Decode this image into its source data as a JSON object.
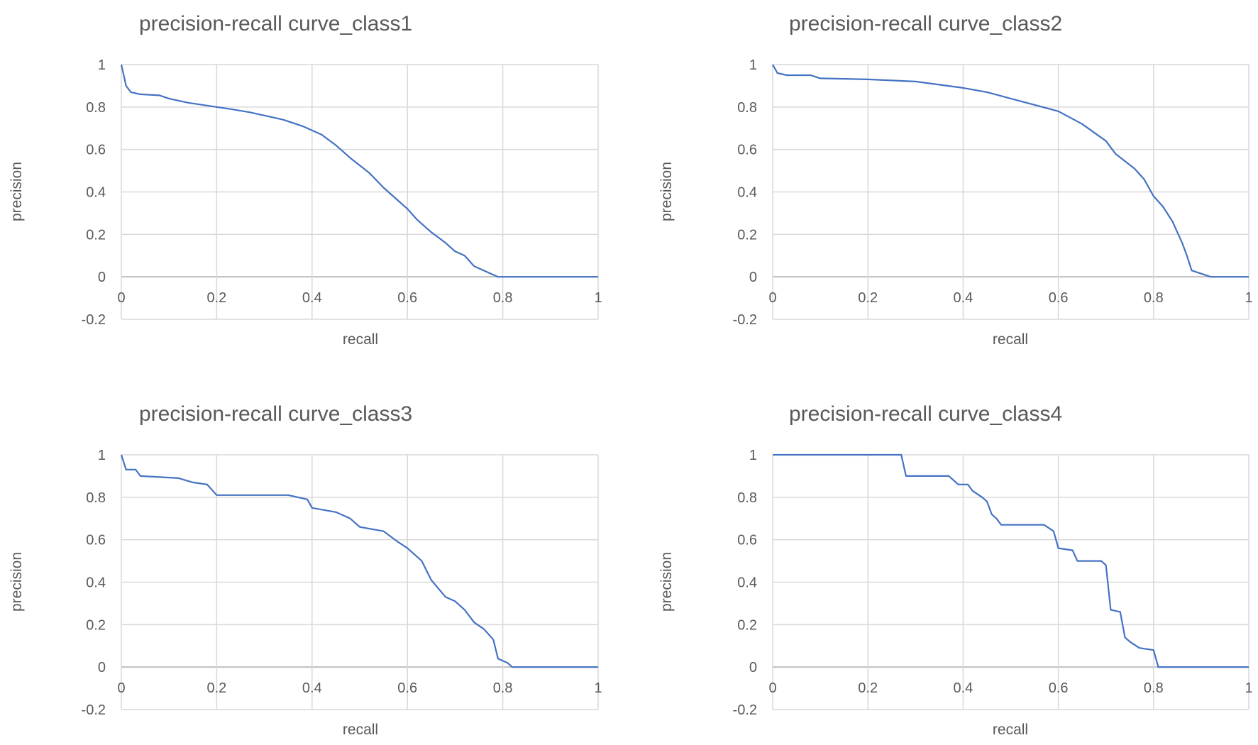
{
  "chart_data": [
    {
      "type": "line",
      "title": "precision-recall curve_class1",
      "xlabel": "recall",
      "ylabel": "precision",
      "xlim": [
        0,
        1
      ],
      "ylim": [
        -0.2,
        1
      ],
      "x_ticks": [
        "0",
        "0.2",
        "0.4",
        "0.6",
        "0.8",
        "1"
      ],
      "y_ticks": [
        "1",
        "0.8",
        "0.6",
        "0.4",
        "0.2",
        "0",
        "-0.2"
      ],
      "grid": true,
      "legend": "none",
      "series": [
        {
          "color": "#4472c4",
          "points": [
            [
              0,
              1
            ],
            [
              0.005,
              0.95
            ],
            [
              0.01,
              0.9
            ],
            [
              0.02,
              0.87
            ],
            [
              0.04,
              0.86
            ],
            [
              0.08,
              0.855
            ],
            [
              0.1,
              0.84
            ],
            [
              0.14,
              0.82
            ],
            [
              0.2,
              0.8
            ],
            [
              0.23,
              0.79
            ],
            [
              0.27,
              0.775
            ],
            [
              0.3,
              0.76
            ],
            [
              0.34,
              0.74
            ],
            [
              0.38,
              0.71
            ],
            [
              0.42,
              0.67
            ],
            [
              0.45,
              0.62
            ],
            [
              0.48,
              0.56
            ],
            [
              0.52,
              0.49
            ],
            [
              0.55,
              0.42
            ],
            [
              0.58,
              0.36
            ],
            [
              0.6,
              0.32
            ],
            [
              0.62,
              0.27
            ],
            [
              0.65,
              0.21
            ],
            [
              0.68,
              0.16
            ],
            [
              0.7,
              0.12
            ],
            [
              0.72,
              0.1
            ],
            [
              0.74,
              0.05
            ],
            [
              0.77,
              0.02
            ],
            [
              0.78,
              0.01
            ],
            [
              0.79,
              0
            ],
            [
              1,
              0
            ]
          ]
        }
      ]
    },
    {
      "type": "line",
      "title": "precision-recall curve_class2",
      "xlabel": "recall",
      "ylabel": "precision",
      "xlim": [
        0,
        1
      ],
      "ylim": [
        -0.2,
        1
      ],
      "x_ticks": [
        "0",
        "0.2",
        "0.4",
        "0.6",
        "0.8",
        "1"
      ],
      "y_ticks": [
        "1",
        "0.8",
        "0.6",
        "0.4",
        "0.2",
        "0",
        "-0.2"
      ],
      "grid": true,
      "legend": "none",
      "series": [
        {
          "color": "#4472c4",
          "points": [
            [
              0,
              1
            ],
            [
              0.01,
              0.96
            ],
            [
              0.03,
              0.95
            ],
            [
              0.08,
              0.95
            ],
            [
              0.1,
              0.935
            ],
            [
              0.2,
              0.93
            ],
            [
              0.3,
              0.92
            ],
            [
              0.4,
              0.89
            ],
            [
              0.45,
              0.87
            ],
            [
              0.5,
              0.84
            ],
            [
              0.55,
              0.81
            ],
            [
              0.6,
              0.78
            ],
            [
              0.65,
              0.72
            ],
            [
              0.7,
              0.64
            ],
            [
              0.72,
              0.58
            ],
            [
              0.76,
              0.51
            ],
            [
              0.78,
              0.46
            ],
            [
              0.8,
              0.38
            ],
            [
              0.82,
              0.33
            ],
            [
              0.84,
              0.26
            ],
            [
              0.86,
              0.16
            ],
            [
              0.87,
              0.1
            ],
            [
              0.88,
              0.03
            ],
            [
              0.9,
              0.015
            ],
            [
              0.92,
              0
            ],
            [
              1,
              0
            ]
          ]
        }
      ]
    },
    {
      "type": "line",
      "title": "precision-recall curve_class3",
      "xlabel": "recall",
      "ylabel": "precision",
      "xlim": [
        0,
        1
      ],
      "ylim": [
        -0.2,
        1
      ],
      "x_ticks": [
        "0",
        "0.2",
        "0.4",
        "0.6",
        "0.8",
        "1"
      ],
      "y_ticks": [
        "1",
        "0.8",
        "0.6",
        "0.4",
        "0.2",
        "0",
        "-0.2"
      ],
      "grid": true,
      "legend": "none",
      "series": [
        {
          "color": "#4472c4",
          "points": [
            [
              0,
              1
            ],
            [
              0.01,
              0.93
            ],
            [
              0.03,
              0.93
            ],
            [
              0.04,
              0.9
            ],
            [
              0.12,
              0.89
            ],
            [
              0.15,
              0.87
            ],
            [
              0.18,
              0.86
            ],
            [
              0.2,
              0.81
            ],
            [
              0.35,
              0.81
            ],
            [
              0.39,
              0.79
            ],
            [
              0.4,
              0.75
            ],
            [
              0.45,
              0.73
            ],
            [
              0.48,
              0.7
            ],
            [
              0.5,
              0.66
            ],
            [
              0.55,
              0.64
            ],
            [
              0.58,
              0.59
            ],
            [
              0.6,
              0.56
            ],
            [
              0.63,
              0.5
            ],
            [
              0.65,
              0.41
            ],
            [
              0.68,
              0.33
            ],
            [
              0.7,
              0.31
            ],
            [
              0.72,
              0.27
            ],
            [
              0.74,
              0.21
            ],
            [
              0.76,
              0.18
            ],
            [
              0.78,
              0.13
            ],
            [
              0.79,
              0.04
            ],
            [
              0.81,
              0.02
            ],
            [
              0.82,
              0
            ],
            [
              1,
              0
            ]
          ]
        }
      ]
    },
    {
      "type": "line",
      "title": "precision-recall curve_class4",
      "xlabel": "recall",
      "ylabel": "precision",
      "xlim": [
        0,
        1
      ],
      "ylim": [
        -0.2,
        1
      ],
      "x_ticks": [
        "0",
        "0.2",
        "0.4",
        "0.6",
        "0.8",
        "1"
      ],
      "y_ticks": [
        "1",
        "0.8",
        "0.6",
        "0.4",
        "0.2",
        "0",
        "-0.2"
      ],
      "grid": true,
      "legend": "none",
      "series": [
        {
          "color": "#4472c4",
          "points": [
            [
              0,
              1
            ],
            [
              0.27,
              1
            ],
            [
              0.28,
              0.9
            ],
            [
              0.37,
              0.9
            ],
            [
              0.39,
              0.86
            ],
            [
              0.41,
              0.86
            ],
            [
              0.42,
              0.83
            ],
            [
              0.44,
              0.8
            ],
            [
              0.45,
              0.78
            ],
            [
              0.46,
              0.72
            ],
            [
              0.47,
              0.7
            ],
            [
              0.48,
              0.67
            ],
            [
              0.57,
              0.67
            ],
            [
              0.59,
              0.64
            ],
            [
              0.6,
              0.56
            ],
            [
              0.63,
              0.55
            ],
            [
              0.64,
              0.5
            ],
            [
              0.69,
              0.5
            ],
            [
              0.7,
              0.48
            ],
            [
              0.71,
              0.27
            ],
            [
              0.73,
              0.26
            ],
            [
              0.74,
              0.14
            ],
            [
              0.75,
              0.12
            ],
            [
              0.77,
              0.09
            ],
            [
              0.8,
              0.08
            ],
            [
              0.81,
              0
            ],
            [
              1,
              0
            ]
          ]
        }
      ]
    }
  ]
}
